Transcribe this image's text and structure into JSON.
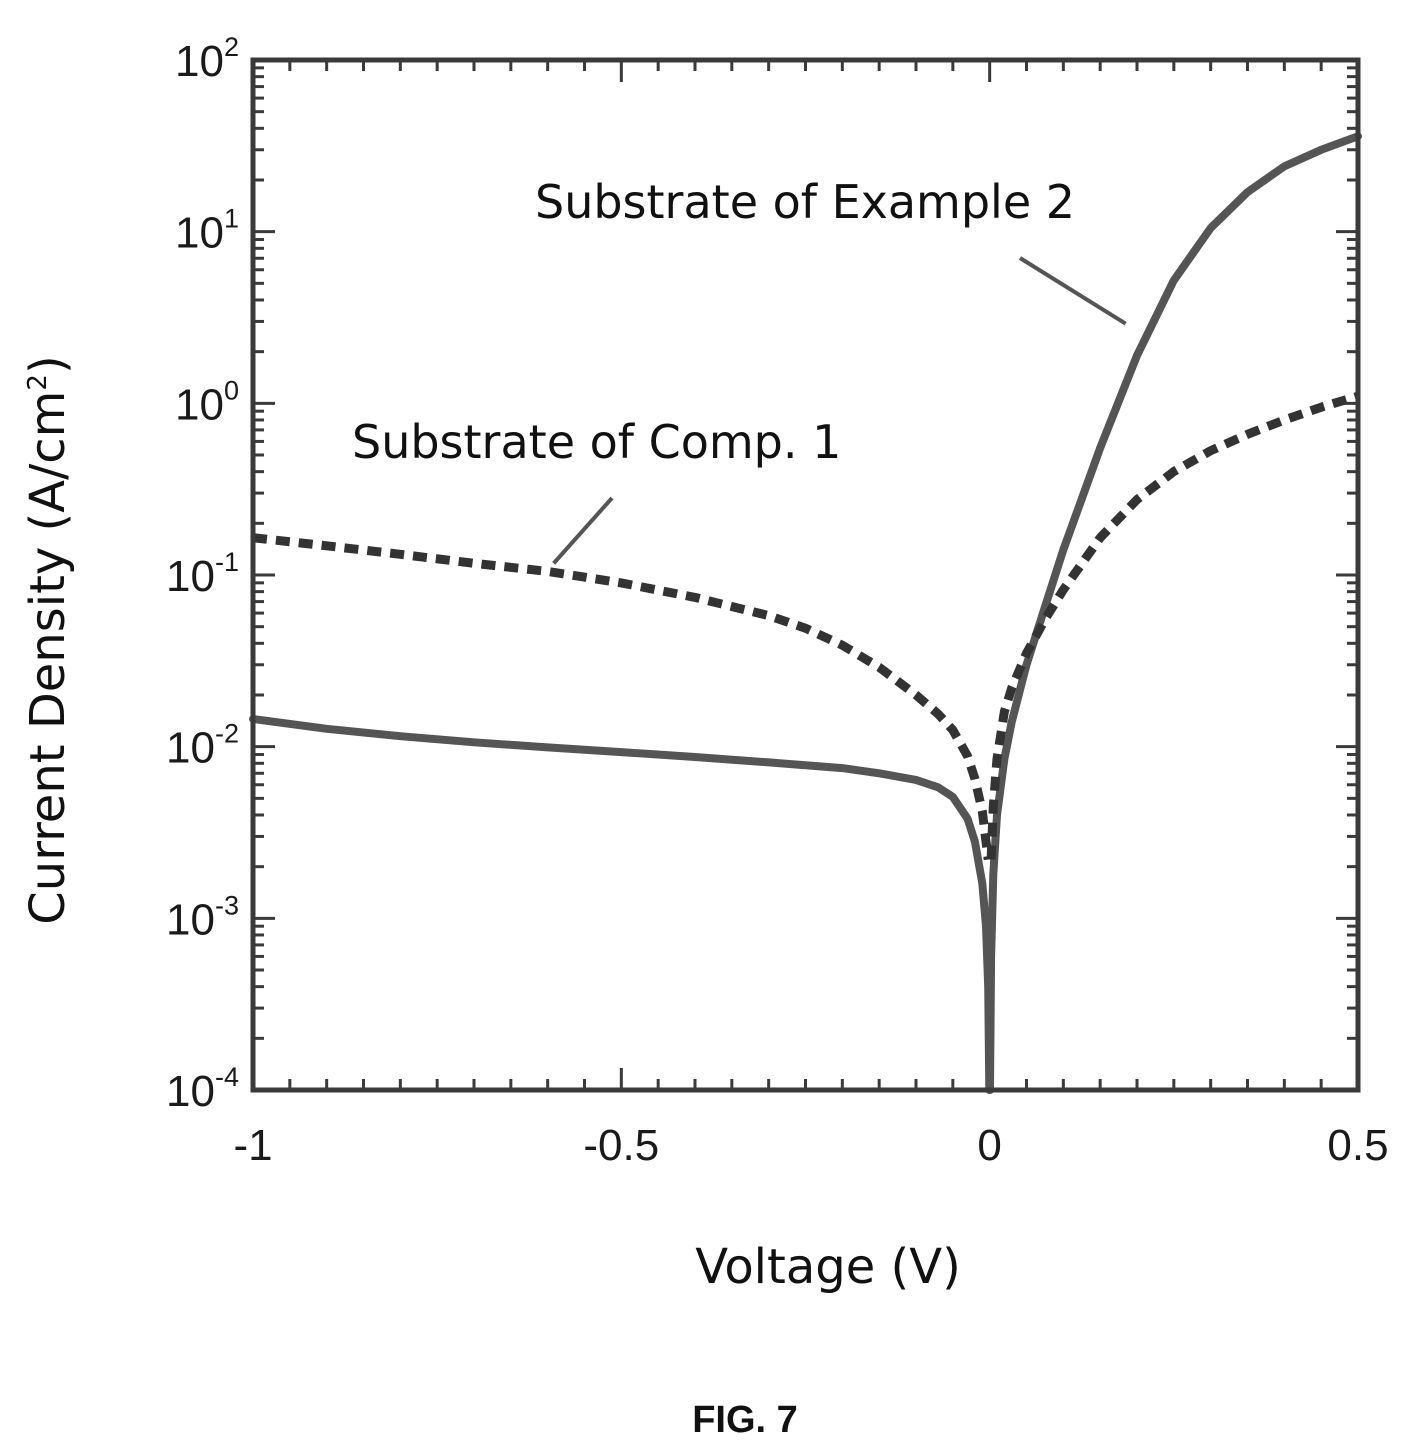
{
  "figure_label": "FIG. 7",
  "chart_data": {
    "type": "line",
    "xlabel": "Voltage (V)",
    "ylabel_main": "Current Density (A/cm",
    "ylabel_sup": "2",
    "ylabel_close": ")",
    "xlim": [
      -1,
      0.5
    ],
    "ylim": [
      0.0001,
      100
    ],
    "yscale": "log",
    "x_ticks": [
      {
        "value": -1,
        "label": "-1"
      },
      {
        "value": -0.5,
        "label": "-0.5"
      },
      {
        "value": 0,
        "label": "0"
      },
      {
        "value": 0.5,
        "label": "0.5"
      }
    ],
    "y_ticks": [
      {
        "value": 100,
        "base": "10",
        "exp": "2"
      },
      {
        "value": 10,
        "base": "10",
        "exp": "1"
      },
      {
        "value": 1,
        "base": "10",
        "exp": "0"
      },
      {
        "value": 0.1,
        "base": "10",
        "exp": "-1"
      },
      {
        "value": 0.01,
        "base": "10",
        "exp": "-2"
      },
      {
        "value": 0.001,
        "base": "10",
        "exp": "-3"
      },
      {
        "value": 0.0001,
        "base": "10",
        "exp": "-4"
      }
    ],
    "grid": false,
    "legend": "none",
    "series": [
      {
        "name": "Substrate of Example 2",
        "style": "solid",
        "color": "#555555",
        "points": [
          [
            -1.0,
            0.0145
          ],
          [
            -0.9,
            0.0127
          ],
          [
            -0.8,
            0.0115
          ],
          [
            -0.7,
            0.0106
          ],
          [
            -0.6,
            0.0099
          ],
          [
            -0.5,
            0.0093
          ],
          [
            -0.4,
            0.0087
          ],
          [
            -0.3,
            0.0081
          ],
          [
            -0.2,
            0.0075
          ],
          [
            -0.15,
            0.007
          ],
          [
            -0.1,
            0.0064
          ],
          [
            -0.07,
            0.0058
          ],
          [
            -0.05,
            0.0051
          ],
          [
            -0.03,
            0.0038
          ],
          [
            -0.02,
            0.0028
          ],
          [
            -0.01,
            0.0016
          ],
          [
            -0.005,
            0.0009
          ],
          [
            -0.002,
            0.0004
          ],
          [
            -0.0005,
            0.0001
          ]
        ],
        "points_forward": [
          [
            0.0005,
            0.0001
          ],
          [
            0.002,
            0.0006
          ],
          [
            0.005,
            0.0018
          ],
          [
            0.01,
            0.004
          ],
          [
            0.02,
            0.0085
          ],
          [
            0.03,
            0.014
          ],
          [
            0.05,
            0.03
          ],
          [
            0.075,
            0.065
          ],
          [
            0.1,
            0.14
          ],
          [
            0.15,
            0.55
          ],
          [
            0.2,
            1.9
          ],
          [
            0.25,
            5.2
          ],
          [
            0.3,
            10.5
          ],
          [
            0.35,
            17
          ],
          [
            0.4,
            24
          ],
          [
            0.45,
            30
          ],
          [
            0.5,
            36
          ]
        ]
      },
      {
        "name": "Substrate of Comp. 1",
        "style": "dashed",
        "color": "#333333",
        "points": [
          [
            -1.0,
            0.165
          ],
          [
            -0.9,
            0.148
          ],
          [
            -0.8,
            0.132
          ],
          [
            -0.7,
            0.117
          ],
          [
            -0.6,
            0.105
          ],
          [
            -0.5,
            0.09
          ],
          [
            -0.4,
            0.074
          ],
          [
            -0.3,
            0.058
          ],
          [
            -0.25,
            0.049
          ],
          [
            -0.2,
            0.039
          ],
          [
            -0.15,
            0.029
          ],
          [
            -0.1,
            0.02
          ],
          [
            -0.07,
            0.0155
          ],
          [
            -0.05,
            0.0125
          ],
          [
            -0.03,
            0.0088
          ],
          [
            -0.02,
            0.0065
          ],
          [
            -0.01,
            0.0042
          ],
          [
            -0.005,
            0.0028
          ],
          [
            -0.002,
            0.0022
          ]
        ],
        "points_forward": [
          [
            0.002,
            0.0022
          ],
          [
            0.005,
            0.0045
          ],
          [
            0.01,
            0.0085
          ],
          [
            0.02,
            0.016
          ],
          [
            0.03,
            0.022
          ],
          [
            0.05,
            0.035
          ],
          [
            0.075,
            0.055
          ],
          [
            0.1,
            0.082
          ],
          [
            0.15,
            0.165
          ],
          [
            0.2,
            0.275
          ],
          [
            0.25,
            0.4
          ],
          [
            0.3,
            0.53
          ],
          [
            0.35,
            0.66
          ],
          [
            0.4,
            0.8
          ],
          [
            0.45,
            0.95
          ],
          [
            0.5,
            1.1
          ]
        ]
      }
    ],
    "annotations": [
      {
        "text": "Substrate of Example 2",
        "series": 0,
        "target": [
          0.19,
          2.0
        ]
      },
      {
        "text": "Substrate of Comp. 1",
        "series": 1,
        "target": [
          -0.6,
          0.105
        ]
      }
    ]
  }
}
